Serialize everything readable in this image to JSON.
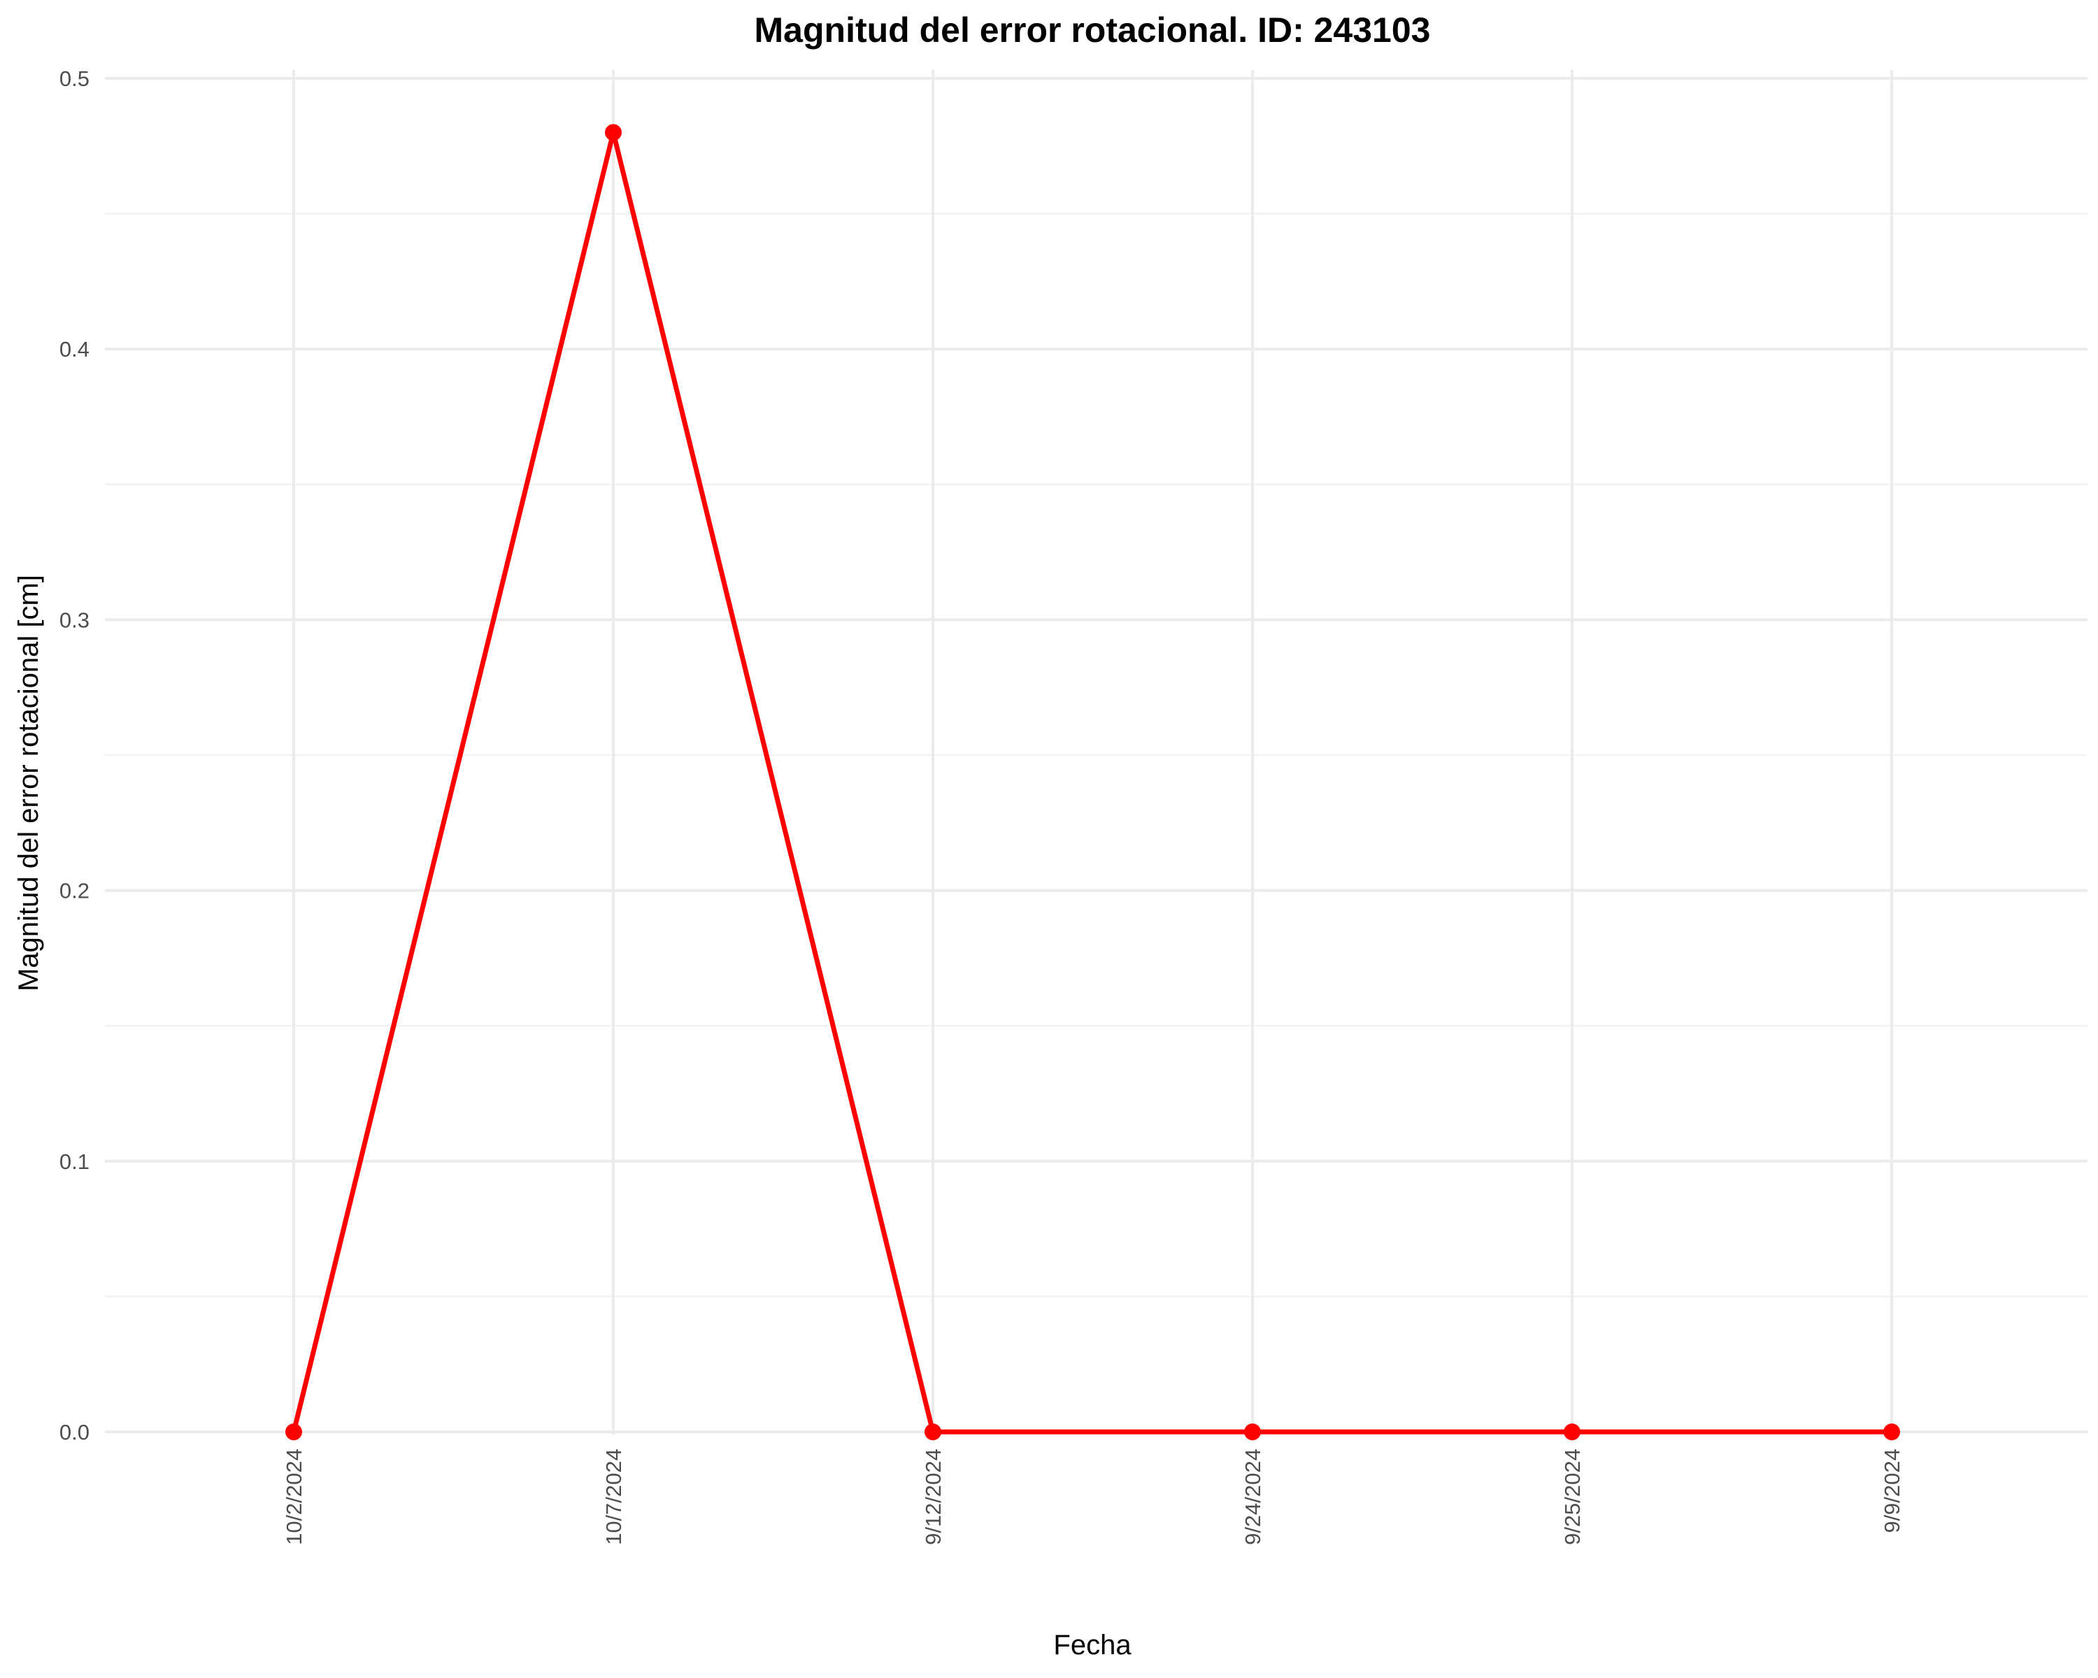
{
  "chart_data": {
    "type": "line",
    "title": "Magnitud del error rotacional. ID: 243103",
    "xlabel": "Fecha",
    "ylabel": "Magnitud del error rotacional [cm]",
    "categories": [
      "10/2/2024",
      "10/7/2024",
      "9/12/2024",
      "9/24/2024",
      "9/25/2024",
      "9/9/2024"
    ],
    "series": [
      {
        "values": [
          0.0,
          0.48,
          0.0,
          0.0,
          0.0,
          0.0
        ],
        "color": "#ff0000"
      }
    ],
    "ylim": [
      0,
      0.5
    ],
    "yticks": [
      "0.0",
      "0.1",
      "0.2",
      "0.3",
      "0.4",
      "0.5"
    ],
    "grid": true,
    "legend": "none"
  }
}
